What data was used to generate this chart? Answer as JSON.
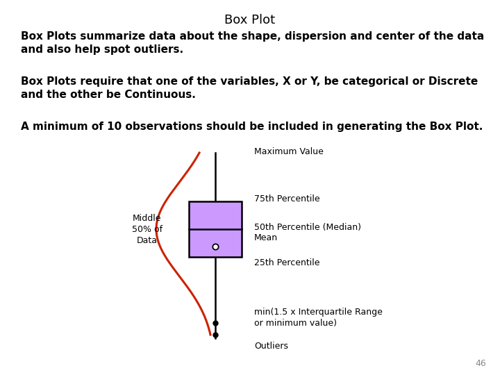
{
  "title": "Box Plot",
  "para1": "Box Plots summarize data about the shape, dispersion and center of the data\nand also help spot outliers.",
  "para2": "Box Plots require that one of the variables, X or Y, be categorical or Discrete\nand the other be Continuous.",
  "para3": "A minimum of 10 observations should be included in generating the Box Plot.",
  "label_middle": "Middle\n50% of\nData",
  "label_max": "Maximum Value",
  "label_75": "75th Percentile",
  "label_50": "50th Percentile (Median)",
  "label_mean": "Mean",
  "label_25": "25th Percentile",
  "label_min": "min(1.5 x Interquartile Range\nor minimum value)",
  "label_outliers": "Outliers",
  "page_number": "46",
  "bg_color": "#ffffff",
  "box_color": "#cc99ff",
  "box_edge_color": "#000000",
  "curve_color": "#cc2200",
  "text_color": "#000000"
}
